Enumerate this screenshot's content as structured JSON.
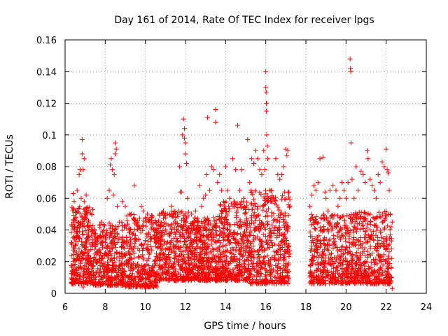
{
  "chart_data": {
    "type": "scatter",
    "title": "Day 161 of 2014, Rate Of TEC Index for receiver lpgs",
    "xlabel": "GPS time / hours",
    "ylabel": "ROTI / TECUs",
    "xlim": [
      6,
      24
    ],
    "ylim": [
      0,
      0.16
    ],
    "xticks": [
      6,
      8,
      10,
      12,
      14,
      16,
      18,
      20,
      22,
      24
    ],
    "yticks": [
      0,
      0.02,
      0.04,
      0.06,
      0.08,
      0.1,
      0.12,
      0.14,
      0.16
    ],
    "ytick_labels": [
      "0",
      "0.02",
      "0.04",
      "0.06",
      "0.08",
      "0.1",
      "0.12",
      "0.14",
      "0.16"
    ],
    "grid": true,
    "marker": "+",
    "color": "#ff0000",
    "series": [
      {
        "name": "ROTI",
        "points": [
          [
            6.4,
            0.063
          ],
          [
            6.45,
            0.058
          ],
          [
            6.5,
            0.052
          ],
          [
            6.5,
            0.03
          ],
          [
            6.6,
            0.065
          ],
          [
            6.65,
            0.045
          ],
          [
            6.7,
            0.075
          ],
          [
            6.75,
            0.078
          ],
          [
            6.8,
            0.06
          ],
          [
            6.85,
            0.097
          ],
          [
            6.85,
            0.088
          ],
          [
            6.9,
            0.078
          ],
          [
            6.95,
            0.085
          ],
          [
            6.95,
            0.058
          ],
          [
            7.0,
            0.048
          ],
          [
            7.05,
            0.062
          ],
          [
            7.1,
            0.054
          ],
          [
            7.15,
            0.045
          ],
          [
            7.25,
            0.043
          ],
          [
            7.3,
            0.04
          ],
          [
            6.9,
            0.004
          ],
          [
            7.4,
            0.038
          ],
          [
            7.6,
            0.035
          ],
          [
            7.8,
            0.045
          ],
          [
            7.9,
            0.04
          ],
          [
            8.0,
            0.035
          ],
          [
            8.1,
            0.06
          ],
          [
            8.2,
            0.065
          ],
          [
            8.25,
            0.081
          ],
          [
            8.3,
            0.085
          ],
          [
            8.35,
            0.078
          ],
          [
            8.4,
            0.062
          ],
          [
            8.45,
            0.075
          ],
          [
            8.5,
            0.095
          ],
          [
            8.5,
            0.088
          ],
          [
            8.55,
            0.091
          ],
          [
            8.6,
            0.055
          ],
          [
            8.7,
            0.045
          ],
          [
            8.85,
            0.058
          ],
          [
            9.0,
            0.055
          ],
          [
            9.2,
            0.05
          ],
          [
            9.3,
            0.05
          ],
          [
            9.45,
            0.068
          ],
          [
            9.6,
            0.045
          ],
          [
            9.8,
            0.055
          ],
          [
            9.9,
            0.052
          ],
          [
            10.1,
            0.05
          ],
          [
            10.3,
            0.048
          ],
          [
            10.5,
            0.045
          ],
          [
            10.7,
            0.05
          ],
          [
            10.9,
            0.052
          ],
          [
            11.1,
            0.05
          ],
          [
            11.3,
            0.055
          ],
          [
            11.5,
            0.05
          ],
          [
            11.6,
            0.05
          ],
          [
            11.7,
            0.08
          ],
          [
            11.75,
            0.064
          ],
          [
            11.8,
            0.064
          ],
          [
            11.85,
            0.1
          ],
          [
            11.9,
            0.11
          ],
          [
            11.95,
            0.104
          ],
          [
            11.95,
            0.098
          ],
          [
            12.0,
            0.095
          ],
          [
            12.0,
            0.088
          ],
          [
            12.05,
            0.082
          ],
          [
            12.1,
            0.06
          ],
          [
            12.3,
            0.05
          ],
          [
            12.5,
            0.052
          ],
          [
            12.7,
            0.068
          ],
          [
            12.8,
            0.055
          ],
          [
            12.9,
            0.06
          ],
          [
            13.0,
            0.062
          ],
          [
            13.05,
            0.075
          ],
          [
            13.1,
            0.111
          ],
          [
            13.2,
            0.065
          ],
          [
            13.3,
            0.08
          ],
          [
            13.4,
            0.078
          ],
          [
            13.5,
            0.116
          ],
          [
            13.5,
            0.108
          ],
          [
            13.6,
            0.07
          ],
          [
            13.7,
            0.075
          ],
          [
            13.8,
            0.065
          ],
          [
            13.9,
            0.058
          ],
          [
            14.0,
            0.08
          ],
          [
            14.1,
            0.065
          ],
          [
            14.2,
            0.06
          ],
          [
            14.35,
            0.085
          ],
          [
            14.5,
            0.078
          ],
          [
            14.6,
            0.106
          ],
          [
            14.7,
            0.065
          ],
          [
            14.8,
            0.078
          ],
          [
            14.9,
            0.06
          ],
          [
            15.1,
            0.097
          ],
          [
            15.2,
            0.07
          ],
          [
            15.3,
            0.085
          ],
          [
            15.4,
            0.082
          ],
          [
            15.5,
            0.09
          ],
          [
            15.6,
            0.085
          ],
          [
            15.7,
            0.078
          ],
          [
            15.8,
            0.075
          ],
          [
            15.9,
            0.09
          ],
          [
            15.95,
            0.078
          ],
          [
            16.0,
            0.14
          ],
          [
            16.0,
            0.13
          ],
          [
            16.02,
            0.127
          ],
          [
            16.03,
            0.12
          ],
          [
            16.03,
            0.115
          ],
          [
            16.05,
            0.1
          ],
          [
            16.08,
            0.093
          ],
          [
            16.1,
            0.085
          ],
          [
            16.2,
            0.065
          ],
          [
            16.3,
            0.06
          ],
          [
            16.5,
            0.085
          ],
          [
            16.6,
            0.075
          ],
          [
            16.7,
            0.072
          ],
          [
            16.8,
            0.075
          ],
          [
            16.9,
            0.08
          ],
          [
            17.0,
            0.091
          ],
          [
            17.05,
            0.087
          ],
          [
            17.1,
            0.09
          ],
          [
            17.15,
            0.064
          ],
          [
            17.2,
            0.055
          ],
          [
            18.2,
            0.055
          ],
          [
            18.3,
            0.062
          ],
          [
            18.4,
            0.068
          ],
          [
            18.5,
            0.065
          ],
          [
            18.6,
            0.07
          ],
          [
            18.7,
            0.085
          ],
          [
            18.85,
            0.086
          ],
          [
            18.95,
            0.064
          ],
          [
            19.0,
            0.06
          ],
          [
            19.1,
            0.052
          ],
          [
            19.2,
            0.065
          ],
          [
            19.35,
            0.068
          ],
          [
            19.5,
            0.065
          ],
          [
            19.6,
            0.055
          ],
          [
            19.7,
            0.06
          ],
          [
            19.8,
            0.07
          ],
          [
            19.9,
            0.065
          ],
          [
            20.0,
            0.06
          ],
          [
            20.1,
            0.07
          ],
          [
            20.2,
            0.148
          ],
          [
            20.22,
            0.142
          ],
          [
            20.24,
            0.14
          ],
          [
            20.25,
            0.095
          ],
          [
            20.3,
            0.072
          ],
          [
            20.4,
            0.06
          ],
          [
            20.5,
            0.08
          ],
          [
            20.6,
            0.065
          ],
          [
            20.75,
            0.077
          ],
          [
            20.85,
            0.075
          ],
          [
            20.95,
            0.07
          ],
          [
            21.05,
            0.09
          ],
          [
            21.1,
            0.085
          ],
          [
            21.2,
            0.072
          ],
          [
            21.3,
            0.068
          ],
          [
            21.4,
            0.065
          ],
          [
            21.5,
            0.06
          ],
          [
            21.6,
            0.075
          ],
          [
            21.7,
            0.07
          ],
          [
            21.8,
            0.083
          ],
          [
            21.9,
            0.08
          ],
          [
            22.0,
            0.091
          ],
          [
            22.05,
            0.078
          ],
          [
            22.1,
            0.076
          ],
          [
            22.15,
            0.065
          ],
          [
            22.2,
            0.05
          ],
          [
            22.25,
            0.042
          ],
          [
            22.3,
            0.045
          ],
          [
            22.3,
            0.003
          ]
        ],
        "bands": [
          {
            "x": [
              6.3,
              7.4
            ],
            "y": [
              0.006,
              0.055
            ],
            "n": 320
          },
          {
            "x": [
              7.4,
              9.0
            ],
            "y": [
              0.005,
              0.045
            ],
            "n": 360
          },
          {
            "x": [
              9.0,
              10.6
            ],
            "y": [
              0.004,
              0.05
            ],
            "n": 360
          },
          {
            "x": [
              10.6,
              12.2
            ],
            "y": [
              0.008,
              0.052
            ],
            "n": 380
          },
          {
            "x": [
              12.2,
              13.6
            ],
            "y": [
              0.008,
              0.048
            ],
            "n": 380
          },
          {
            "x": [
              13.6,
              15.2
            ],
            "y": [
              0.008,
              0.058
            ],
            "n": 420
          },
          {
            "x": [
              15.2,
              17.2
            ],
            "y": [
              0.006,
              0.065
            ],
            "n": 460
          },
          {
            "x": [
              18.2,
              20.2
            ],
            "y": [
              0.006,
              0.05
            ],
            "n": 420
          },
          {
            "x": [
              20.2,
              22.3
            ],
            "y": [
              0.006,
              0.052
            ],
            "n": 440
          }
        ]
      }
    ]
  }
}
